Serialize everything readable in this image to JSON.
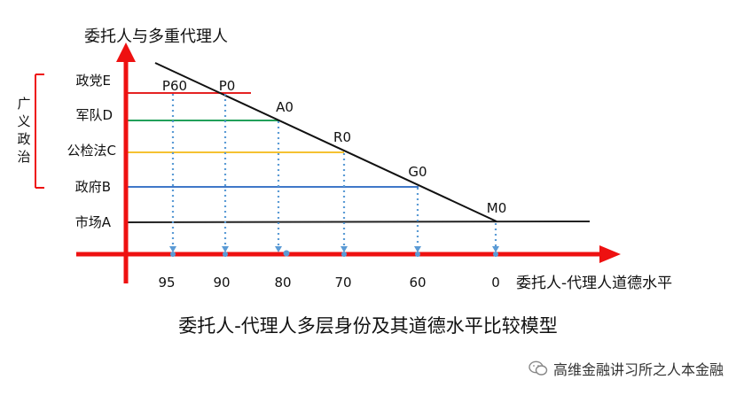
{
  "axis": {
    "y_label": "委托人与多重代理人",
    "x_label": "委托人-代理人道德水平"
  },
  "bracket_label": [
    "广",
    "义",
    "政",
    "治"
  ],
  "levels": [
    {
      "label": "政党E",
      "color": "#e52222"
    },
    {
      "label": "军队D",
      "color": "#22a05a"
    },
    {
      "label": "公检法C",
      "color": "#f5c231"
    },
    {
      "label": "政府B",
      "color": "#3f78c8"
    },
    {
      "label": "市场A",
      "color": "#222222"
    }
  ],
  "points": [
    "P60",
    "P0",
    "A0",
    "R0",
    "G0",
    "M0"
  ],
  "x_ticks": [
    "95",
    "90",
    "80",
    "70",
    "60",
    "0"
  ],
  "colors": {
    "axis": "#ee1111",
    "dotted": "#5b9bd5",
    "diagonal": "#111111"
  },
  "title": "委托人-代理人多层身份及其道德水平比较模型",
  "watermark": "高维金融讲习所之人本金融"
}
